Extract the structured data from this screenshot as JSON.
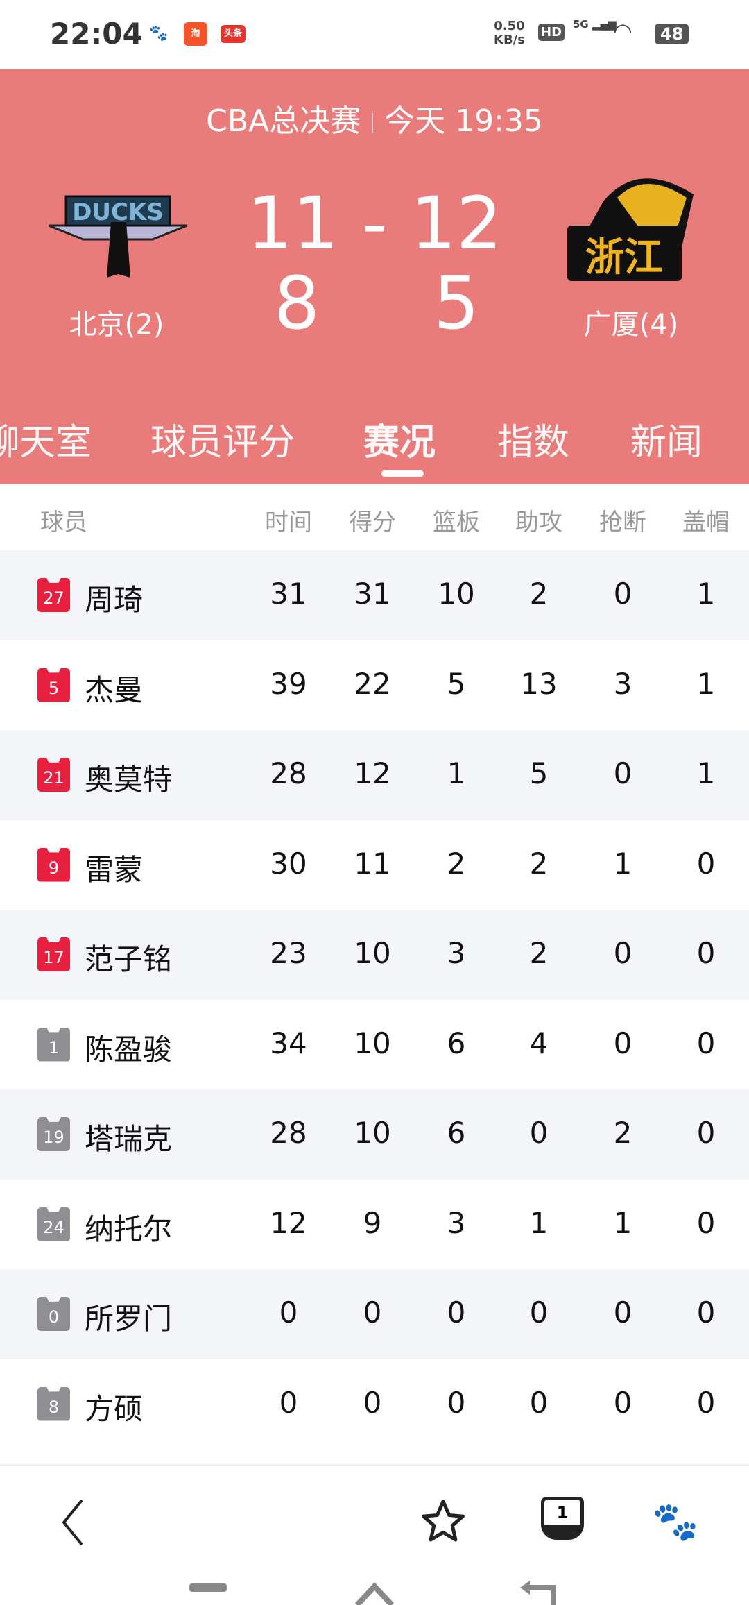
{
  "status_bar": {
    "time": "22:04",
    "net_speed": "0.50",
    "net_unit": "KB/s",
    "hd": "HD",
    "signal": "5G",
    "battery": "48",
    "notif_app3": "头条"
  },
  "match": {
    "title": "CBA总决赛",
    "datetime": "今天 19:35",
    "score_top": "11 - 12",
    "home_score": "8",
    "away_score": "5",
    "home_team": "北京(2)",
    "away_team": "广厦(4)",
    "home_logo_text": "DUCKS",
    "away_logo_text": "浙江"
  },
  "tabs": [
    {
      "label": "聊天室"
    },
    {
      "label": "球员评分"
    },
    {
      "label": "赛况",
      "active": true
    },
    {
      "label": "指数"
    },
    {
      "label": "新闻"
    }
  ],
  "table": {
    "columns": [
      "球员",
      "时间",
      "得分",
      "篮板",
      "助攻",
      "抢断",
      "盖帽"
    ],
    "rows": [
      {
        "number": "27",
        "name": "周琦",
        "starter": true,
        "stats": [
          "31",
          "31",
          "10",
          "2",
          "0",
          "1"
        ]
      },
      {
        "number": "5",
        "name": "杰曼",
        "starter": true,
        "stats": [
          "39",
          "22",
          "5",
          "13",
          "3",
          "1"
        ]
      },
      {
        "number": "21",
        "name": "奥莫特",
        "starter": true,
        "stats": [
          "28",
          "12",
          "1",
          "5",
          "0",
          "1"
        ]
      },
      {
        "number": "9",
        "name": "雷蒙",
        "starter": true,
        "stats": [
          "30",
          "11",
          "2",
          "2",
          "1",
          "0"
        ]
      },
      {
        "number": "17",
        "name": "范子铭",
        "starter": true,
        "stats": [
          "23",
          "10",
          "3",
          "2",
          "0",
          "0"
        ]
      },
      {
        "number": "1",
        "name": "陈盈骏",
        "starter": false,
        "stats": [
          "34",
          "10",
          "6",
          "4",
          "0",
          "0"
        ]
      },
      {
        "number": "19",
        "name": "塔瑞克",
        "starter": false,
        "stats": [
          "28",
          "10",
          "6",
          "0",
          "2",
          "0"
        ]
      },
      {
        "number": "24",
        "name": "纳托尔",
        "starter": false,
        "stats": [
          "12",
          "9",
          "3",
          "1",
          "1",
          "0"
        ]
      },
      {
        "number": "0",
        "name": "所罗门",
        "starter": false,
        "stats": [
          "0",
          "0",
          "0",
          "0",
          "0",
          "0"
        ]
      },
      {
        "number": "8",
        "name": "方硕",
        "starter": false,
        "stats": [
          "0",
          "0",
          "0",
          "0",
          "0",
          "0"
        ]
      }
    ]
  },
  "bottom_bar": {
    "tab_count": "1",
    "icons": [
      "back-icon",
      "star-icon",
      "incognito-tabs-icon",
      "baidu-paw-icon"
    ]
  },
  "colors": {
    "header": "#e97b7b",
    "starter_jersey": "#e8203f",
    "bench_jersey": "#8e8e93",
    "row_alt": "#f4f5f9"
  }
}
